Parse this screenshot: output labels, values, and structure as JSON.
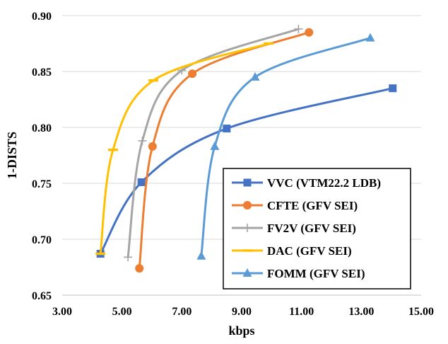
{
  "chart_data": {
    "type": "line",
    "title": "",
    "xlabel": "kbps",
    "ylabel": "1-DISTS",
    "xlim": [
      3.0,
      15.0
    ],
    "ylim": [
      0.65,
      0.9
    ],
    "x_ticks": [
      3.0,
      5.0,
      7.0,
      9.0,
      11.0,
      13.0,
      15.0
    ],
    "x_tick_labels": [
      "3.00",
      "5.00",
      "7.00",
      "9.00",
      "11.00",
      "13.00",
      "15.00"
    ],
    "y_ticks": [
      0.65,
      0.7,
      0.75,
      0.8,
      0.85,
      0.9
    ],
    "y_tick_labels": [
      "0.65",
      "0.70",
      "0.75",
      "0.80",
      "0.85",
      "0.90"
    ],
    "grid": "horizontal",
    "legend_position": "bottom-right",
    "series": [
      {
        "name": "VVC (VTM22.2 LDB)",
        "color": "#4472C4",
        "marker": "square",
        "points": [
          [
            4.28,
            0.687
          ],
          [
            5.65,
            0.751
          ],
          [
            8.5,
            0.799
          ],
          [
            14.05,
            0.835
          ]
        ]
      },
      {
        "name": "CFTE (GFV SEI)",
        "color": "#ED7D31",
        "marker": "circle",
        "points": [
          [
            5.58,
            0.674
          ],
          [
            6.02,
            0.783
          ],
          [
            7.35,
            0.848
          ],
          [
            11.25,
            0.885
          ]
        ]
      },
      {
        "name": "FV2V (GFV SEI)",
        "color": "#A5A5A5",
        "marker": "plus",
        "points": [
          [
            5.2,
            0.684
          ],
          [
            5.68,
            0.788
          ],
          [
            7.0,
            0.851
          ],
          [
            10.9,
            0.888
          ]
        ]
      },
      {
        "name": "DAC (GFV SEI)",
        "color": "#FFC000",
        "marker": "dash",
        "points": [
          [
            4.28,
            0.687
          ],
          [
            4.7,
            0.78
          ],
          [
            6.05,
            0.842
          ],
          [
            9.9,
            0.875
          ]
        ]
      },
      {
        "name": "FOMM (GFV SEI)",
        "color": "#5B9BD5",
        "marker": "triangle",
        "points": [
          [
            7.65,
            0.685
          ],
          [
            8.1,
            0.783
          ],
          [
            9.45,
            0.845
          ],
          [
            13.3,
            0.88
          ]
        ]
      }
    ]
  }
}
